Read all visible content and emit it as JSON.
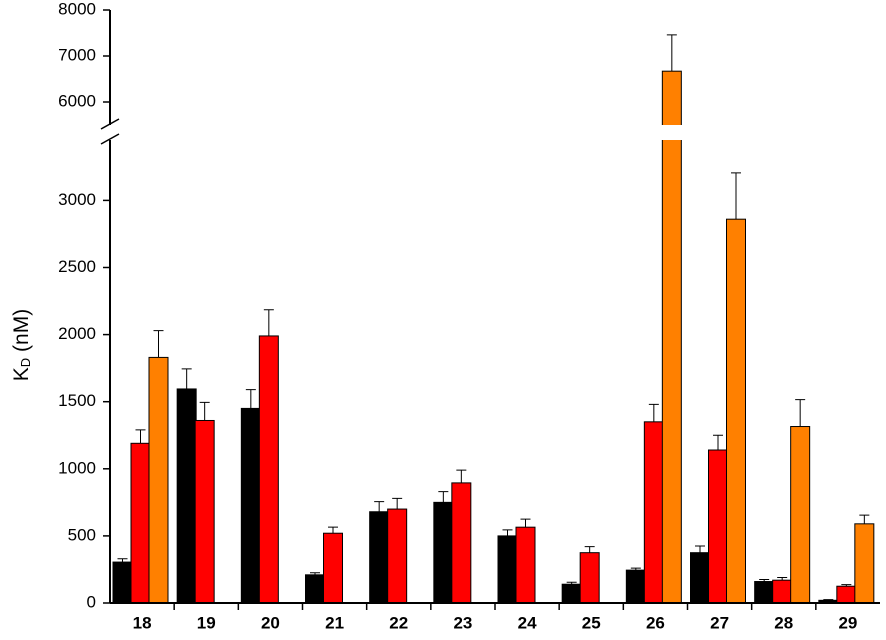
{
  "chart_data": {
    "type": "bar",
    "ylabel": {
      "main": "K",
      "sub": "D",
      "rest": " (nM)"
    },
    "categories": [
      "18",
      "19",
      "20",
      "21",
      "22",
      "23",
      "24",
      "25",
      "26",
      "27",
      "28",
      "29"
    ],
    "series": [
      {
        "color": "#000000",
        "values": [
          305,
          1595,
          1450,
          210,
          680,
          750,
          500,
          140,
          245,
          375,
          160,
          20
        ],
        "errors": [
          25,
          150,
          140,
          15,
          75,
          80,
          45,
          15,
          15,
          50,
          15,
          5
        ]
      },
      {
        "color": "#ff0000",
        "values": [
          1190,
          1360,
          1990,
          520,
          700,
          895,
          565,
          375,
          1350,
          1140,
          170,
          125
        ],
        "errors": [
          100,
          135,
          195,
          45,
          80,
          95,
          60,
          45,
          130,
          110,
          20,
          12
        ]
      },
      {
        "color": "#ff8000",
        "values": [
          1830,
          null,
          null,
          null,
          null,
          null,
          null,
          null,
          6670,
          2860,
          1315,
          590
        ],
        "errors": [
          200,
          null,
          null,
          null,
          null,
          null,
          null,
          null,
          790,
          345,
          200,
          65
        ]
      }
    ],
    "ylim": [
      0,
      8000
    ],
    "ybreak": [
      3450,
      5500
    ],
    "yticks": [
      0,
      500,
      1000,
      1500,
      2000,
      2500,
      3000,
      6000,
      7000,
      8000
    ]
  }
}
